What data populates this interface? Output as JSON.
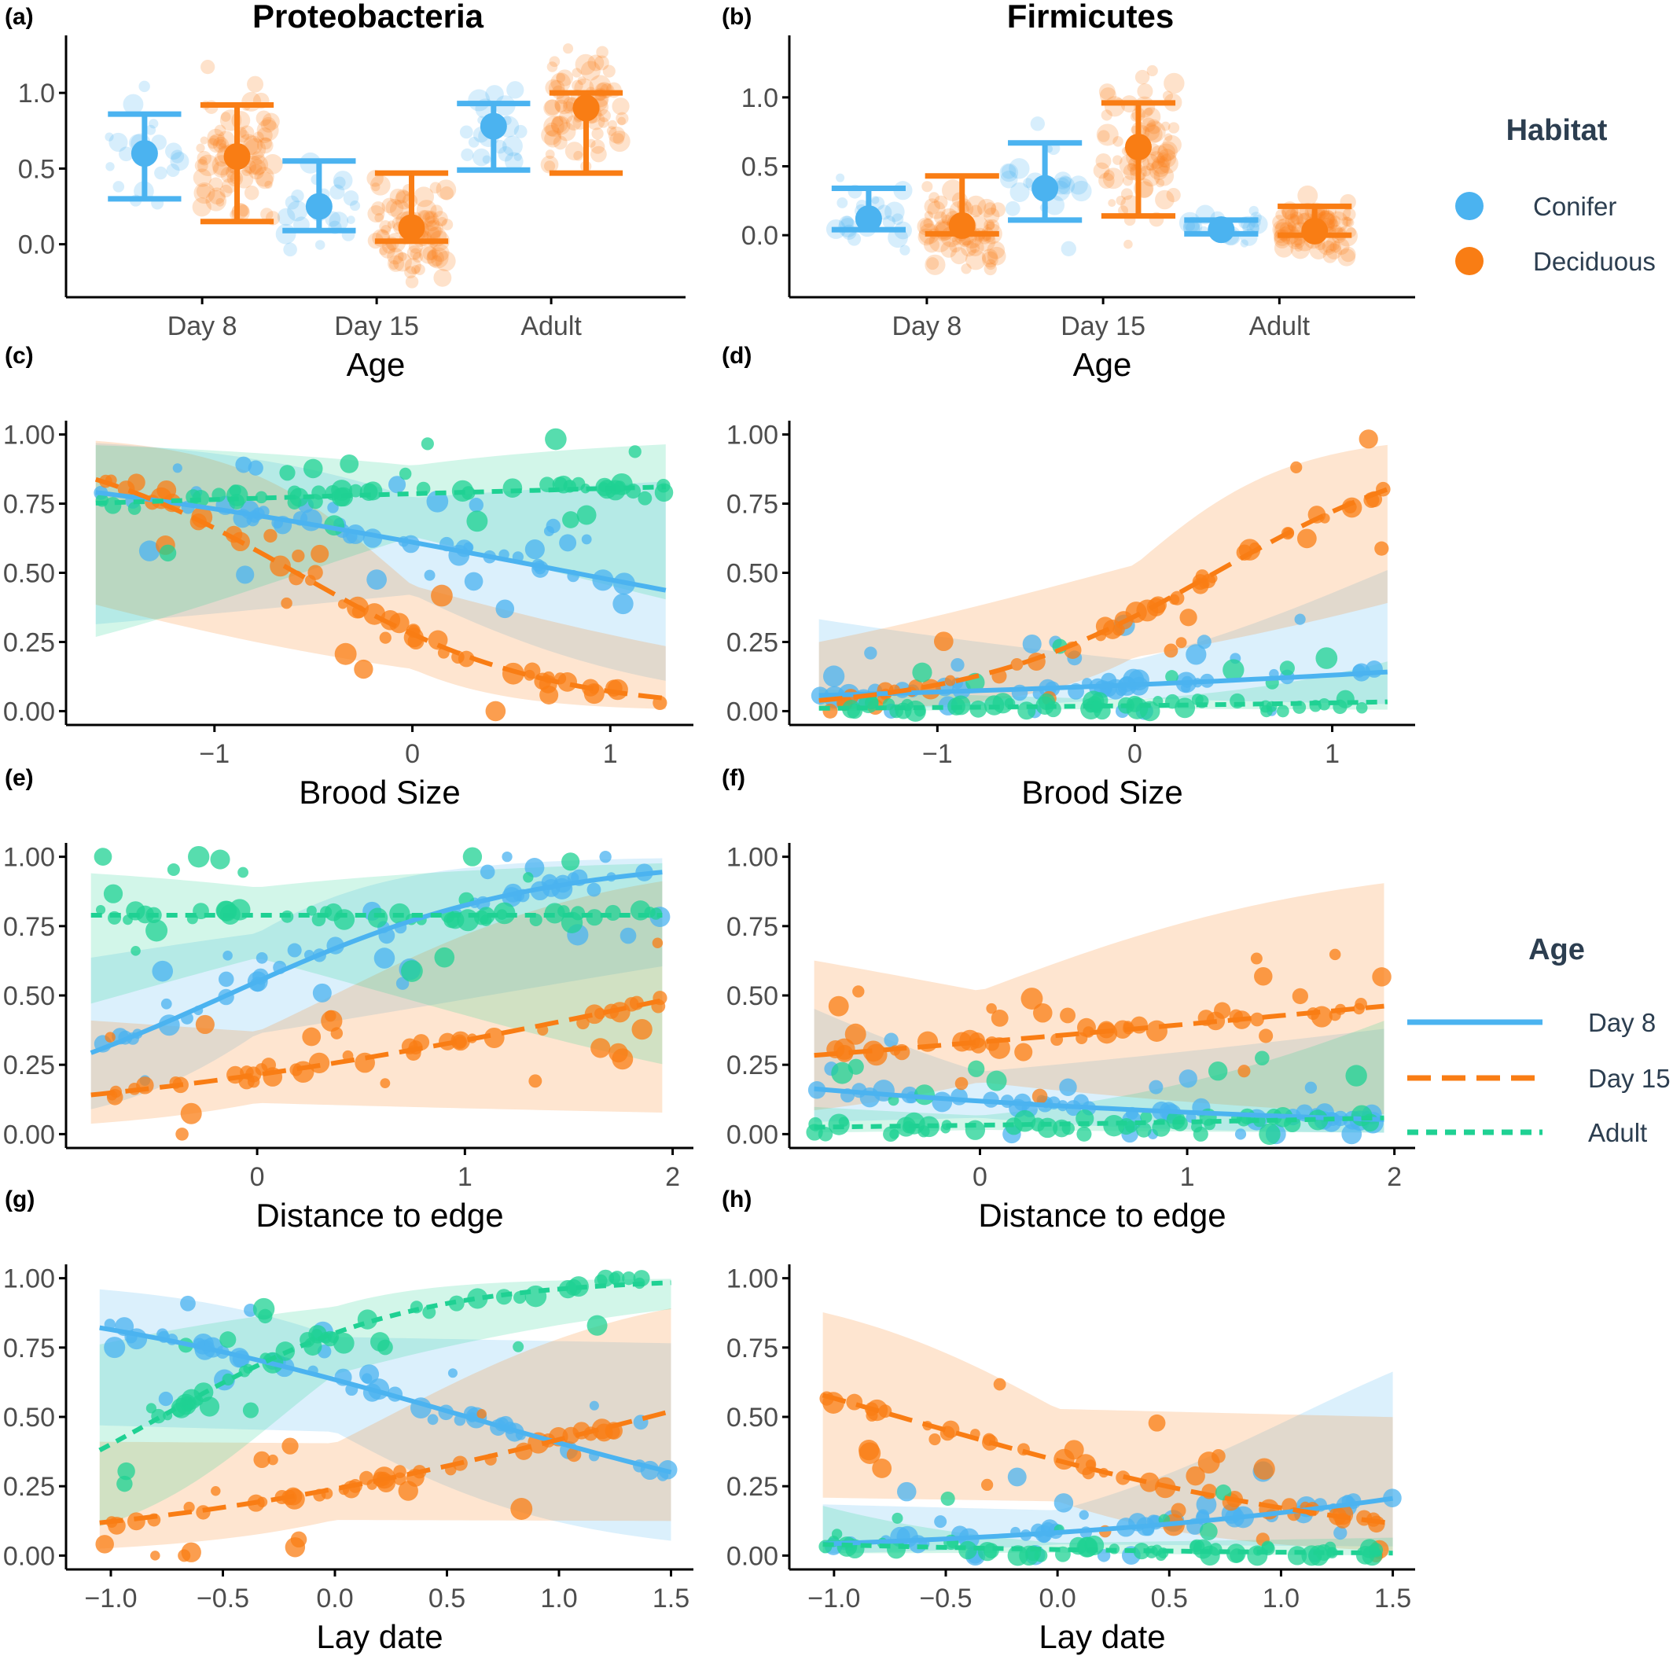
{
  "colors": {
    "conifer": "#4BB3F0",
    "deciduous": "#F97D14",
    "adult": "#1FD193",
    "axis": "#000000",
    "tick_text": "#4d4d4d"
  },
  "legend_habitat": {
    "title": "Habitat",
    "items": [
      {
        "label": "Conifer",
        "color": "#4BB3F0"
      },
      {
        "label": "Deciduous",
        "color": "#F97D14"
      }
    ]
  },
  "legend_age": {
    "title": "Age",
    "items": [
      {
        "label": "Day 8",
        "color": "#4BB3F0",
        "dash": "solid"
      },
      {
        "label": "Day 15",
        "color": "#F97D14",
        "dash": "long"
      },
      {
        "label": "Adult",
        "color": "#1FD193",
        "dash": "short"
      }
    ]
  },
  "chart_data": [
    {
      "id": "a",
      "letter": "(a)",
      "type": "scatter",
      "title": "Proteobacteria",
      "xlabel": "Age",
      "ylabel": "",
      "categories": [
        "Day 8",
        "Day 15",
        "Adult"
      ],
      "yticks": [
        0.0,
        0.5,
        1.0
      ],
      "ytick_labels": [
        "0.0",
        "0.5",
        "1.0"
      ],
      "ylim": [
        -0.35,
        1.38
      ],
      "series": [
        {
          "name": "Conifer",
          "means": [
            0.6,
            0.25,
            0.78
          ],
          "lower": [
            0.3,
            0.09,
            0.49
          ],
          "upper": [
            0.86,
            0.55,
            0.93
          ]
        },
        {
          "name": "Deciduous",
          "means": [
            0.58,
            0.11,
            0.9
          ],
          "lower": [
            0.15,
            0.02,
            0.47
          ],
          "upper": [
            0.92,
            0.47,
            1.0
          ]
        }
      ]
    },
    {
      "id": "b",
      "letter": "(b)",
      "type": "scatter",
      "title": "Firmicutes",
      "xlabel": "Age",
      "ylabel": "",
      "categories": [
        "Day 8",
        "Day 15",
        "Adult"
      ],
      "yticks": [
        0.0,
        0.5,
        1.0
      ],
      "ytick_labels": [
        "0.0",
        "0.5",
        "1.0"
      ],
      "ylim": [
        -0.45,
        1.45
      ],
      "series": [
        {
          "name": "Conifer",
          "means": [
            0.12,
            0.34,
            0.04
          ],
          "lower": [
            0.04,
            0.11,
            0.01
          ],
          "upper": [
            0.34,
            0.67,
            0.11
          ]
        },
        {
          "name": "Deciduous",
          "means": [
            0.07,
            0.64,
            0.03
          ],
          "lower": [
            0.01,
            0.14,
            0.0
          ],
          "upper": [
            0.43,
            0.96,
            0.21
          ]
        }
      ]
    },
    {
      "id": "c",
      "letter": "(c)",
      "type": "line",
      "xlabel": "Brood Size",
      "ylabel": "",
      "xlim": [
        -1.75,
        1.42
      ],
      "ylim": [
        -0.05,
        1.05
      ],
      "xticks": [
        -1,
        0,
        1
      ],
      "xtick_labels": [
        "−1",
        "0",
        "1"
      ],
      "yticks": [
        0,
        0.25,
        0.5,
        0.75,
        1.0
      ],
      "ytick_labels": [
        "0.00",
        "0.25",
        "0.50",
        "0.75",
        "1.00"
      ],
      "x_range": [
        -1.6,
        1.28
      ],
      "series": [
        {
          "name": "Day 8",
          "b0": 0.45,
          "b1": -0.55,
          "se0": 0.45,
          "se1": 0.55
        },
        {
          "name": "Day 15",
          "b0": -0.95,
          "b1": -1.62,
          "se0": 0.45,
          "se1": 0.55
        },
        {
          "name": "Adult",
          "b0": 1.3,
          "b1": 0.12,
          "se0": 0.45,
          "se1": 0.55
        }
      ]
    },
    {
      "id": "d",
      "letter": "(d)",
      "type": "line",
      "xlabel": "Brood Size",
      "ylabel": "",
      "xlim": [
        -1.75,
        1.42
      ],
      "ylim": [
        -0.05,
        1.05
      ],
      "xticks": [
        -1,
        0,
        1
      ],
      "xtick_labels": [
        "−1",
        "0",
        "1"
      ],
      "yticks": [
        0,
        0.25,
        0.5,
        0.75,
        1.0
      ],
      "ytick_labels": [
        "0.00",
        "0.25",
        "0.50",
        "0.75",
        "1.00"
      ],
      "x_range": [
        -1.6,
        1.28
      ],
      "series": [
        {
          "name": "Day 8",
          "b0": -2.25,
          "b1": 0.35,
          "se0": 0.45,
          "se1": 0.55
        },
        {
          "name": "Day 15",
          "b0": -0.65,
          "b1": 1.6,
          "se0": 0.45,
          "se1": 0.55
        },
        {
          "name": "Adult",
          "b0": -3.9,
          "b1": 0.42,
          "se0": 0.45,
          "se1": 0.55
        }
      ]
    },
    {
      "id": "e",
      "letter": "(e)",
      "type": "line",
      "xlabel": "Distance to edge",
      "ylabel": "",
      "xlim": [
        -0.92,
        2.1
      ],
      "ylim": [
        -0.05,
        1.05
      ],
      "xticks": [
        0,
        1,
        2
      ],
      "xtick_labels": [
        "0",
        "1",
        "2"
      ],
      "yticks": [
        0,
        0.25,
        0.5,
        0.75,
        1.0
      ],
      "ytick_labels": [
        "0.00",
        "0.25",
        "0.50",
        "0.75",
        "1.00"
      ],
      "x_range": [
        -0.8,
        1.95
      ],
      "series": [
        {
          "name": "Day 8",
          "b0": 0.2,
          "b1": 1.35,
          "se0": 0.45,
          "se1": 0.55
        },
        {
          "name": "Day 15",
          "b0": -1.3,
          "b1": 0.63,
          "se0": 0.45,
          "se1": 0.55
        },
        {
          "name": "Adult",
          "b0": 1.32,
          "b1": 0.0,
          "se0": 0.45,
          "se1": 0.55
        }
      ]
    },
    {
      "id": "f",
      "letter": "(f)",
      "type": "line",
      "xlabel": "Distance to edge",
      "ylabel": "",
      "xlim": [
        -0.92,
        2.1
      ],
      "ylim": [
        -0.05,
        1.05
      ],
      "xticks": [
        0,
        1,
        2
      ],
      "xtick_labels": [
        "0",
        "1",
        "2"
      ],
      "yticks": [
        0,
        0.25,
        0.5,
        0.75,
        1.0
      ],
      "ytick_labels": [
        "0.00",
        "0.25",
        "0.50",
        "0.75",
        "1.00"
      ],
      "x_range": [
        -0.8,
        1.95
      ],
      "series": [
        {
          "name": "Day 8",
          "b0": -2.0,
          "b1": -0.46,
          "se0": 0.45,
          "se1": 0.55
        },
        {
          "name": "Day 15",
          "b0": -0.7,
          "b1": 0.28,
          "se0": 0.45,
          "se1": 0.55
        },
        {
          "name": "Adult",
          "b0": -3.4,
          "b1": 0.32,
          "se0": 0.45,
          "se1": 0.55
        }
      ]
    },
    {
      "id": "g",
      "letter": "(g)",
      "type": "line",
      "xlabel": "Lay date",
      "ylabel": "",
      "xlim": [
        -1.2,
        1.6
      ],
      "ylim": [
        -0.05,
        1.05
      ],
      "xticks": [
        -1.0,
        -0.5,
        0.0,
        0.5,
        1.0,
        1.5
      ],
      "xtick_labels": [
        "−1.0",
        "−0.5",
        "0.0",
        "0.5",
        "1.0",
        "1.5"
      ],
      "yticks": [
        0,
        0.25,
        0.5,
        0.75,
        1.0
      ],
      "ytick_labels": [
        "0.00",
        "0.25",
        "0.50",
        "0.75",
        "1.00"
      ],
      "x_range": [
        -1.05,
        1.5
      ],
      "series": [
        {
          "name": "Day 8",
          "b0": 0.55,
          "b1": -0.93,
          "se0": 0.45,
          "se1": 0.55
        },
        {
          "name": "Day 15",
          "b0": -1.15,
          "b1": 0.82,
          "se0": 0.45,
          "se1": 0.55
        },
        {
          "name": "Adult",
          "b0": 1.4,
          "b1": 1.8,
          "se0": 0.45,
          "se1": 0.55
        }
      ]
    },
    {
      "id": "h",
      "letter": "(h)",
      "type": "line",
      "xlabel": "Lay date",
      "ylabel": "",
      "xlim": [
        -1.2,
        1.6
      ],
      "ylim": [
        -0.05,
        1.05
      ],
      "xticks": [
        -1.0,
        -0.5,
        0.0,
        0.5,
        1.0,
        1.5
      ],
      "xtick_labels": [
        "−1.0",
        "−0.5",
        "0.0",
        "0.5",
        "1.0",
        "1.5"
      ],
      "yticks": [
        0,
        0.25,
        0.5,
        0.75,
        1.0
      ],
      "ytick_labels": [
        "0.00",
        "0.25",
        "0.50",
        "0.75",
        "1.00"
      ],
      "x_range": [
        -1.05,
        1.5
      ],
      "series": [
        {
          "name": "Day 8",
          "b0": -2.4,
          "b1": 0.7,
          "se0": 0.45,
          "se1": 0.55
        },
        {
          "name": "Day 15",
          "b0": -0.65,
          "b1": -0.92,
          "se0": 0.45,
          "se1": 0.55
        },
        {
          "name": "Adult",
          "b0": -3.8,
          "b1": -0.6,
          "se0": 0.45,
          "se1": 0.55
        }
      ]
    }
  ]
}
